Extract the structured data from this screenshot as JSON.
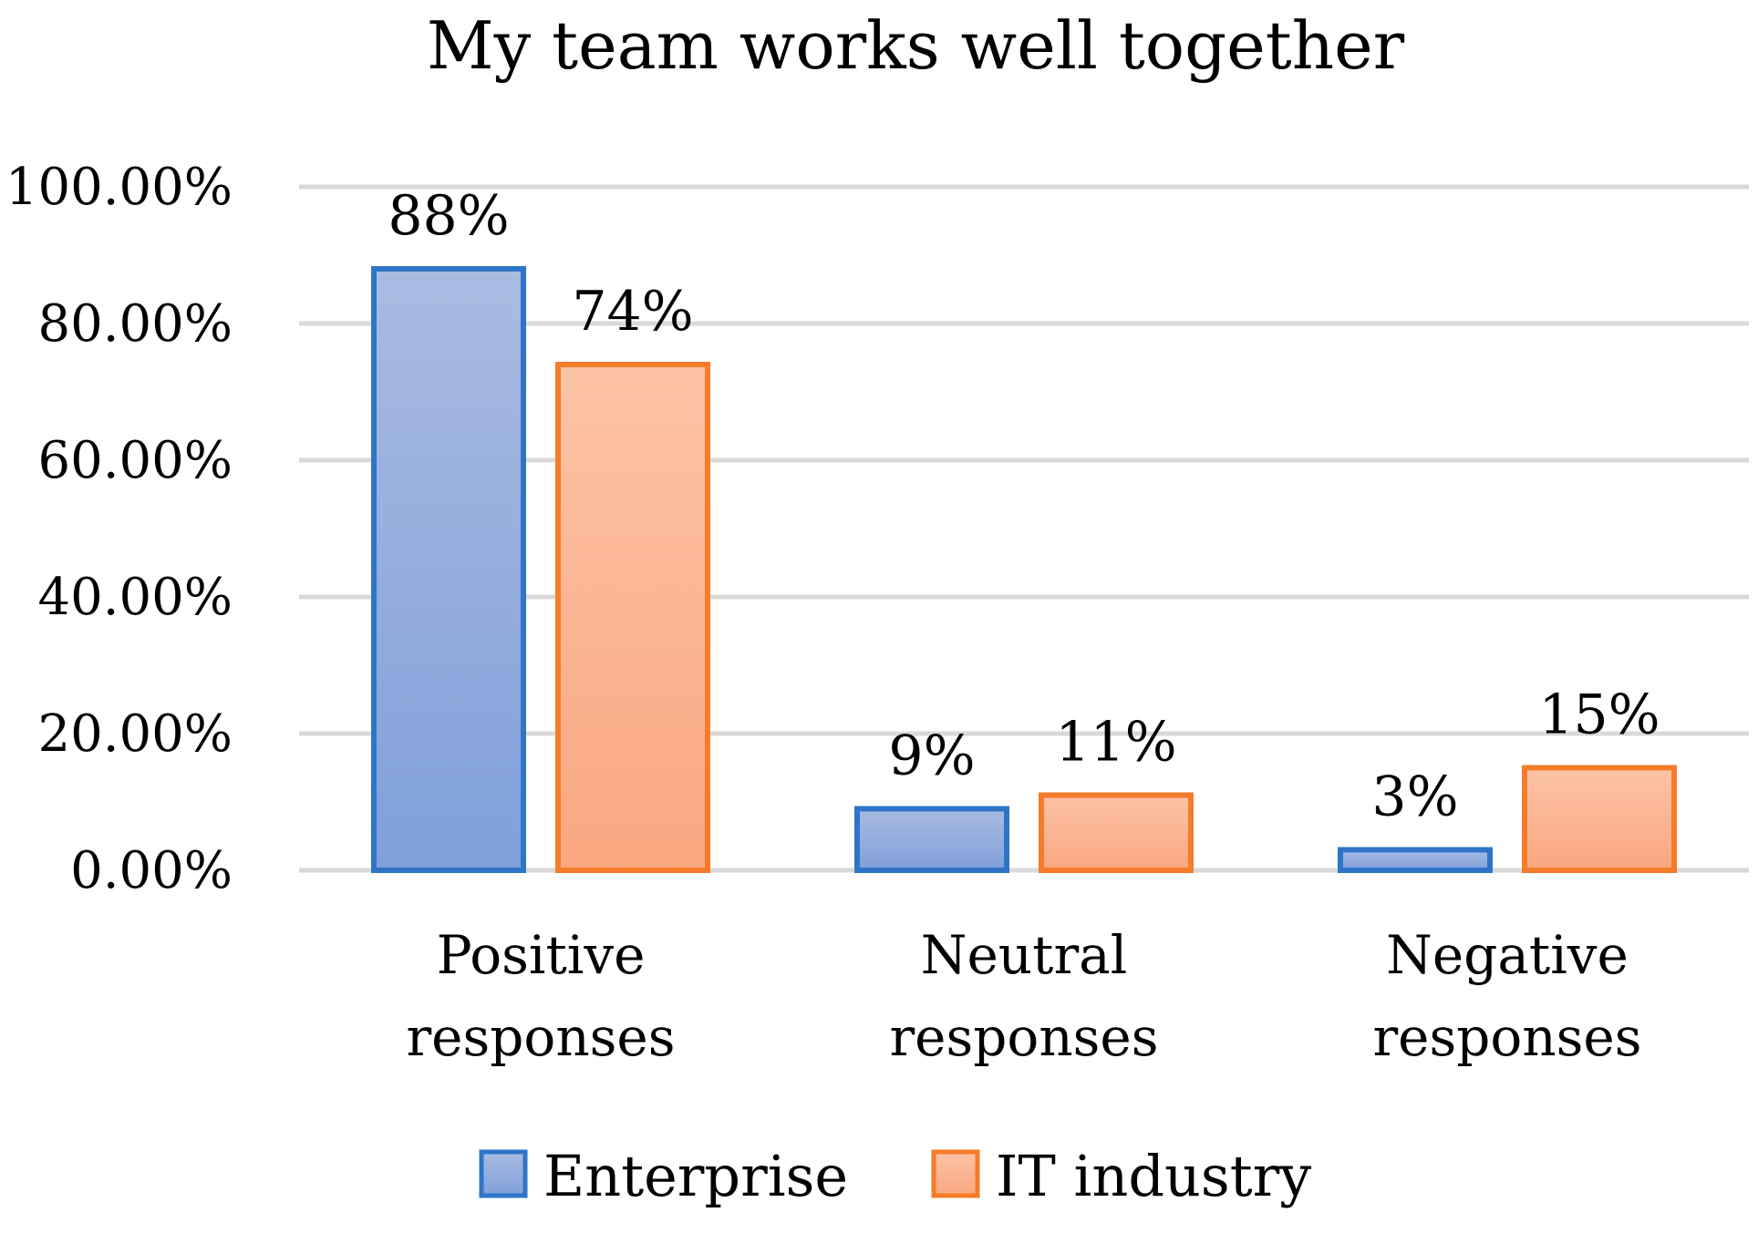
{
  "chart_data": {
    "type": "bar",
    "title": "My team works well together",
    "xlabel": "",
    "ylabel": "",
    "ylim": [
      0,
      100
    ],
    "yticks": [
      "0.00%",
      "20.00%",
      "40.00%",
      "60.00%",
      "80.00%",
      "100.00%"
    ],
    "grid": true,
    "legend_position": "bottom",
    "categories": [
      [
        "Positive",
        "responses"
      ],
      [
        "Neutral",
        "responses"
      ],
      [
        "Negative",
        "responses"
      ]
    ],
    "series": [
      {
        "name": "Enterprise",
        "values": [
          88,
          9,
          3
        ],
        "labels": [
          "88%",
          "9%",
          "3%"
        ],
        "fill_top": "#a9bbe1",
        "fill_bottom": "#7fa0d9",
        "stroke": "#2e75c8"
      },
      {
        "name": "IT industry",
        "values": [
          74,
          11,
          15
        ],
        "labels": [
          "74%",
          "11%",
          "15%"
        ],
        "fill_top": "#fcc3a6",
        "fill_bottom": "#f9a780",
        "stroke": "#f57c2a"
      }
    ]
  }
}
